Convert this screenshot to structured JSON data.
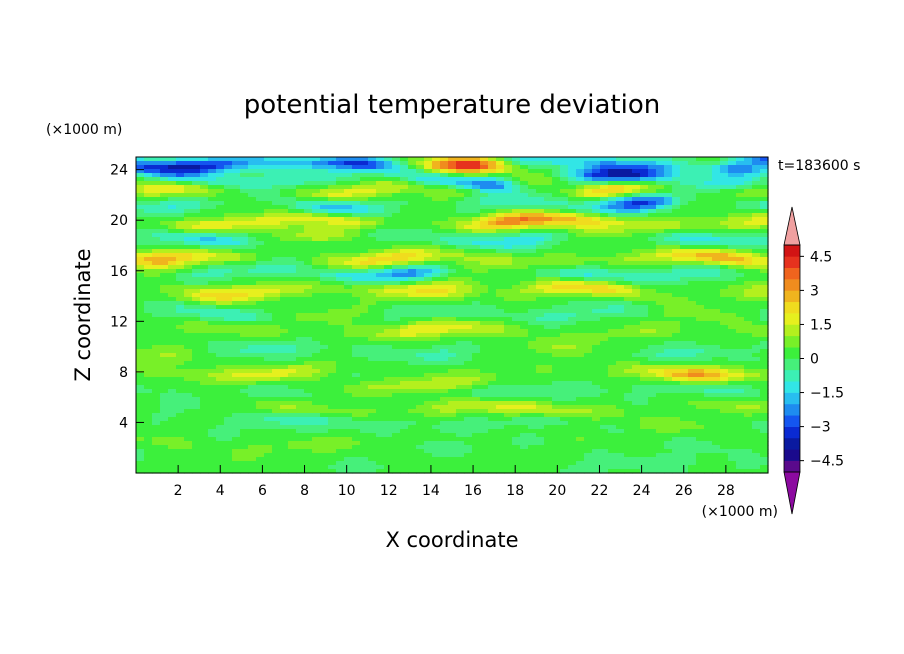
{
  "chart_data": {
    "type": "heatmap",
    "title": "potential temperature deviation",
    "xlabel": "X coordinate",
    "ylabel": "Z coordinate",
    "x_unit": "(×1000 m)",
    "y_unit": "(×1000 m)",
    "time_label": "t=183600 s",
    "xlim": [
      0,
      30
    ],
    "ylim": [
      0,
      25
    ],
    "x_ticks": [
      2,
      4,
      6,
      8,
      10,
      12,
      14,
      16,
      18,
      20,
      22,
      24,
      26,
      28
    ],
    "y_ticks": [
      4,
      8,
      12,
      16,
      20,
      24
    ],
    "colorbar": {
      "labels": [
        "4.5",
        "3",
        "1.5",
        "0",
        "−1.5",
        "−3",
        "−4.5"
      ],
      "label_values": [
        4.5,
        3,
        1.5,
        0,
        -1.5,
        -3,
        -4.5
      ],
      "levels": [
        -5,
        -4.5,
        -4,
        -3.5,
        -3,
        -2.5,
        -2,
        -1.5,
        -1,
        -0.5,
        0,
        0.5,
        1,
        1.5,
        2,
        2.5,
        3,
        3.5,
        4,
        4.5,
        5
      ],
      "colors": [
        "#5a0a8c",
        "#1a0a8c",
        "#0a1aa0",
        "#0a2ad2",
        "#1456f0",
        "#1e8cf0",
        "#28bef0",
        "#32e6e6",
        "#3cf0b4",
        "#46f07a",
        "#3cf03c",
        "#78f028",
        "#b4f01e",
        "#e6f01e",
        "#f0dc1e",
        "#f0b41e",
        "#f08c1e",
        "#f0641e",
        "#e6321e",
        "#d21414"
      ],
      "under_color": "#8c0aa0",
      "over_color": "#f0a0a0"
    },
    "bands": [
      {
        "z": 0.6,
        "a": -0.2,
        "amp": 0.5
      },
      {
        "z": 2.2,
        "a": 0.2,
        "amp": 0.6
      },
      {
        "z": 4.0,
        "a": -0.3,
        "amp": 0.8
      },
      {
        "z": 5.0,
        "a": 0.7,
        "amp": 1.0
      },
      {
        "z": 6.6,
        "a": -0.2,
        "amp": 0.9
      },
      {
        "z": 8.0,
        "a": 0.6,
        "amp": 1.0
      },
      {
        "z": 9.6,
        "a": -0.2,
        "amp": 1.0
      },
      {
        "z": 11.2,
        "a": 0.8,
        "amp": 1.1
      },
      {
        "z": 12.6,
        "a": -0.3,
        "amp": 1.0
      },
      {
        "z": 14.4,
        "a": 1.0,
        "amp": 1.3
      },
      {
        "z": 15.8,
        "a": -0.8,
        "amp": 1.2
      },
      {
        "z": 16.9,
        "a": 1.2,
        "amp": 1.3
      },
      {
        "z": 18.6,
        "a": -0.7,
        "amp": 1.3
      },
      {
        "z": 19.8,
        "a": 1.3,
        "amp": 1.4
      },
      {
        "z": 21.2,
        "a": -0.8,
        "amp": 1.5
      },
      {
        "z": 22.3,
        "a": 1.0,
        "amp": 1.5
      },
      {
        "z": 23.3,
        "a": -1.0,
        "amp": 1.6
      },
      {
        "z": 24.5,
        "a": -1.6,
        "amp": 1.5
      }
    ],
    "blobs": [
      {
        "x": 16.0,
        "z": 24.4,
        "amp": 4.5,
        "sx": 2.0,
        "sz": 0.7
      },
      {
        "x": 13.5,
        "z": 24.2,
        "amp": 2.0,
        "sx": 2.0,
        "sz": 0.6
      },
      {
        "x": 2.0,
        "z": 24.2,
        "amp": -2.2,
        "sx": 2.0,
        "sz": 0.6
      },
      {
        "x": 8.5,
        "z": 24.5,
        "amp": -2.0,
        "sx": 2.0,
        "sz": 0.5
      },
      {
        "x": 24.0,
        "z": 21.5,
        "amp": -2.5,
        "sx": 2.0,
        "sz": 0.6
      },
      {
        "x": 17.0,
        "z": 22.6,
        "amp": -1.8,
        "sx": 1.2,
        "sz": 0.6
      },
      {
        "x": 23.0,
        "z": 23.5,
        "amp": -1.8,
        "sx": 2.0,
        "sz": 0.5
      },
      {
        "x": 28.5,
        "z": 24.0,
        "amp": -2.0,
        "sx": 1.5,
        "sz": 0.5
      },
      {
        "x": 14.0,
        "z": 14.6,
        "amp": 1.6,
        "sx": 2.0,
        "sz": 0.7
      },
      {
        "x": 13.0,
        "z": 15.9,
        "amp": -1.6,
        "sx": 1.5,
        "sz": 0.5
      },
      {
        "x": 20.5,
        "z": 20.0,
        "amp": 1.5,
        "sx": 3.0,
        "sz": 0.7
      },
      {
        "x": 9.0,
        "z": 18.8,
        "amp": 1.2,
        "sx": 2.5,
        "sz": 0.6
      },
      {
        "x": 29.0,
        "z": 16.5,
        "amp": 1.5,
        "sx": 1.5,
        "sz": 0.8
      },
      {
        "x": 26.5,
        "z": 7.8,
        "amp": 1.4,
        "sx": 2.0,
        "sz": 0.6
      },
      {
        "x": 14.5,
        "z": 7.0,
        "amp": 1.2,
        "sx": 2.0,
        "sz": 0.5
      },
      {
        "x": 1.0,
        "z": 16.6,
        "amp": 1.5,
        "sx": 1.5,
        "sz": 0.7
      }
    ]
  }
}
